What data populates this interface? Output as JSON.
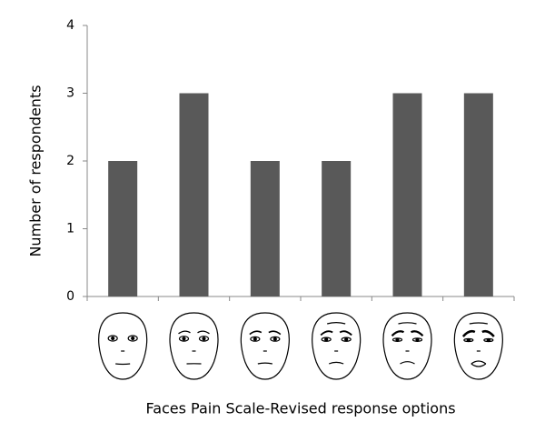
{
  "chart_data": {
    "type": "bar",
    "categories": [
      null,
      null,
      null,
      null,
      null,
      null
    ],
    "values": [
      2,
      3,
      2,
      2,
      3,
      3
    ],
    "color": "#595959",
    "ylim": [
      0,
      4
    ],
    "yticks": [
      0,
      1,
      2,
      3,
      4
    ],
    "grid": false,
    "xlabel": "Faces Pain Scale-Revised response options",
    "ylabel": "Number of respondents"
  }
}
